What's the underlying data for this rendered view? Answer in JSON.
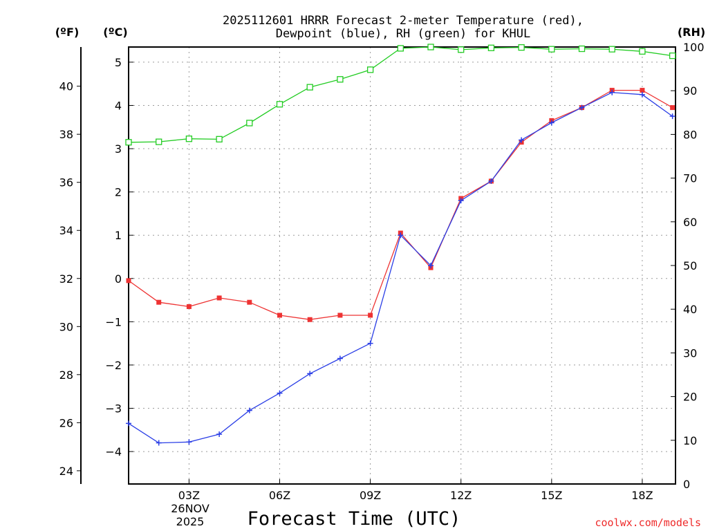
{
  "chart_data": {
    "type": "line",
    "title": "2025112601 HRRR Forecast 2-meter Temperature (red),",
    "subtitle": "Dewpoint (blue), RH (green) for KHUL",
    "xlabel": "Forecast Time (UTC)",
    "credit": "coolwx.com/models",
    "units": {
      "fahrenheit": "(ºF)",
      "celsius": "(ºC)",
      "rh": "(RH)"
    },
    "x": [
      1,
      2,
      3,
      4,
      5,
      6,
      7,
      8,
      9,
      10,
      11,
      12,
      13,
      14,
      15,
      16,
      17,
      18,
      19
    ],
    "xlim": [
      1,
      19.1
    ],
    "x_ticks": [
      {
        "x": 3,
        "label": "03Z"
      },
      {
        "x": 6,
        "label": "06Z"
      },
      {
        "x": 9,
        "label": "09Z"
      },
      {
        "x": 12,
        "label": "12Z"
      },
      {
        "x": 15,
        "label": "15Z"
      },
      {
        "x": 18,
        "label": "18Z"
      }
    ],
    "date_label": {
      "day": "26NOV",
      "year": "2025"
    },
    "celsius_axis": {
      "ylim": [
        -4.75,
        5.35
      ],
      "ticks": [
        -4,
        -3,
        -2,
        -1,
        0,
        1,
        2,
        3,
        4,
        5
      ]
    },
    "fahrenheit_axis": {
      "ylim": [
        23.45,
        41.63
      ],
      "ticks": [
        24,
        26,
        28,
        30,
        32,
        34,
        36,
        38,
        40
      ]
    },
    "rh_axis": {
      "ylim": [
        0,
        100
      ],
      "ticks": [
        0,
        10,
        20,
        30,
        40,
        50,
        60,
        70,
        80,
        90,
        100
      ]
    },
    "series": [
      {
        "name": "2-meter Temperature",
        "axis": "celsius",
        "color": "#ee3333",
        "marker": "square",
        "values": [
          -0.05,
          -0.55,
          -0.65,
          -0.45,
          -0.55,
          -0.85,
          -0.95,
          -0.85,
          -0.85,
          1.05,
          0.25,
          1.85,
          2.25,
          3.15,
          3.65,
          3.95,
          4.35,
          4.35,
          3.95
        ]
      },
      {
        "name": "Dewpoint",
        "axis": "celsius",
        "color": "#2a3ee6",
        "marker": "plus",
        "values": [
          -3.35,
          -3.8,
          -3.78,
          -3.6,
          -3.05,
          -2.65,
          -2.2,
          -1.85,
          -1.5,
          1.0,
          0.3,
          1.8,
          2.25,
          3.2,
          3.6,
          3.95,
          4.3,
          4.25,
          3.75
        ]
      },
      {
        "name": "RH",
        "axis": "rh",
        "color": "#22cc22",
        "marker": "open-square",
        "values": [
          78.2,
          78.3,
          79.0,
          78.9,
          82.6,
          86.9,
          90.8,
          92.6,
          94.8,
          99.7,
          100.0,
          99.4,
          99.8,
          99.9,
          99.5,
          99.6,
          99.5,
          99.0,
          98.0
        ]
      }
    ]
  }
}
